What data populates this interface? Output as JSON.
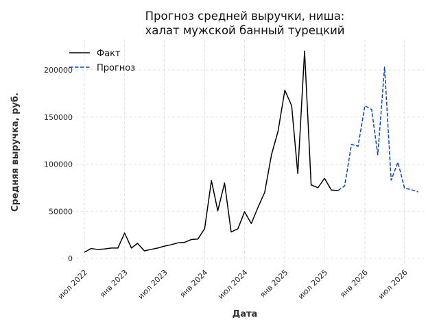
{
  "chart_data": {
    "type": "line",
    "title": [
      "Прогноз средней выручки, ниша:",
      "халат мужской банный турецкий"
    ],
    "xlabel": "Дата",
    "ylabel": "Средняя выручка, руб.",
    "x_ticks": [
      {
        "date": "2022-07-01",
        "label": "июл 2022"
      },
      {
        "date": "2023-01-01",
        "label": "янв 2023"
      },
      {
        "date": "2023-07-01",
        "label": "июл 2023"
      },
      {
        "date": "2024-01-01",
        "label": "янв 2024"
      },
      {
        "date": "2024-07-01",
        "label": "июл 2024"
      },
      {
        "date": "2025-01-01",
        "label": "янв 2025"
      },
      {
        "date": "2025-07-01",
        "label": "июл 2025"
      },
      {
        "date": "2026-01-01",
        "label": "янв 2026"
      },
      {
        "date": "2026-07-01",
        "label": "июл 2026"
      }
    ],
    "y_ticks": [
      0,
      50000,
      100000,
      150000,
      200000
    ],
    "xlim": [
      "2022-03-20",
      "2026-10-10"
    ],
    "ylim": [
      -8000,
      232000
    ],
    "grid": true,
    "legend_position": "top-left",
    "series": [
      {
        "name": "Факт",
        "color": "#000000",
        "dash": "solid",
        "points": [
          [
            "2022-07-01",
            6500
          ],
          [
            "2022-08-01",
            10500
          ],
          [
            "2022-09-01",
            9500
          ],
          [
            "2022-10-01",
            10000
          ],
          [
            "2022-11-01",
            11000
          ],
          [
            "2022-12-01",
            11000
          ],
          [
            "2023-01-01",
            27000
          ],
          [
            "2023-02-01",
            11000
          ],
          [
            "2023-03-01",
            16000
          ],
          [
            "2023-04-01",
            8000
          ],
          [
            "2023-05-01",
            9500
          ],
          [
            "2023-06-01",
            11000
          ],
          [
            "2023-07-01",
            13000
          ],
          [
            "2023-08-01",
            14500
          ],
          [
            "2023-09-01",
            16500
          ],
          [
            "2023-10-01",
            17000
          ],
          [
            "2023-11-01",
            20000
          ],
          [
            "2023-12-01",
            20500
          ],
          [
            "2024-01-01",
            31500
          ],
          [
            "2024-02-01",
            82500
          ],
          [
            "2024-03-01",
            50500
          ],
          [
            "2024-04-01",
            80000
          ],
          [
            "2024-05-01",
            28000
          ],
          [
            "2024-06-01",
            31500
          ],
          [
            "2024-07-01",
            49500
          ],
          [
            "2024-08-01",
            37000
          ],
          [
            "2024-09-01",
            54500
          ],
          [
            "2024-10-01",
            70000
          ],
          [
            "2024-11-01",
            110000
          ],
          [
            "2024-12-01",
            135000
          ],
          [
            "2025-01-01",
            178500
          ],
          [
            "2025-02-01",
            162000
          ],
          [
            "2025-03-01",
            90000
          ],
          [
            "2025-04-01",
            220000
          ],
          [
            "2025-05-01",
            78000
          ],
          [
            "2025-06-01",
            75000
          ],
          [
            "2025-07-01",
            85000
          ],
          [
            "2025-08-01",
            72500
          ],
          [
            "2025-09-01",
            72000
          ]
        ]
      },
      {
        "name": "Прогноз",
        "color": "#0b44c7",
        "dash": "dashed",
        "points": [
          [
            "2025-09-01",
            72000
          ],
          [
            "2025-10-01",
            77000
          ],
          [
            "2025-11-01",
            121000
          ],
          [
            "2025-12-01",
            119000
          ],
          [
            "2026-01-01",
            162000
          ],
          [
            "2026-02-01",
            158000
          ],
          [
            "2026-03-01",
            110000
          ],
          [
            "2026-04-01",
            203000
          ],
          [
            "2026-05-01",
            83000
          ],
          [
            "2026-06-01",
            102000
          ],
          [
            "2026-07-01",
            74500
          ],
          [
            "2026-08-01",
            73000
          ],
          [
            "2026-09-01",
            70500
          ]
        ]
      }
    ]
  }
}
